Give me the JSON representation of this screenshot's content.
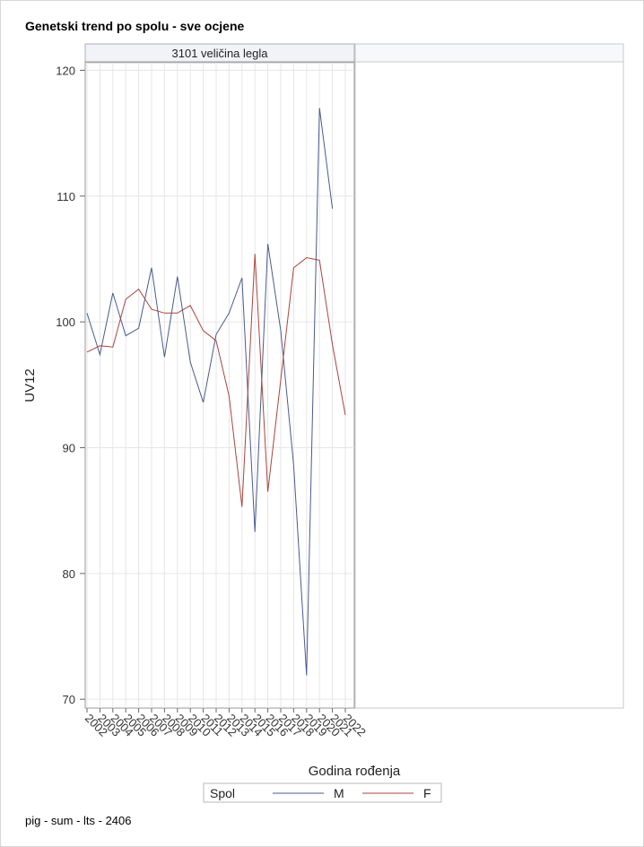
{
  "title": "Genetski trend po spolu - sve ocjene",
  "footnote": "pig - sum - lts - 2406",
  "chart_data": {
    "type": "line",
    "panel_label": "3101 veličina legla",
    "xlabel": "Godina rođenja",
    "ylabel": "UV12",
    "ylim": [
      69.3,
      120.6
    ],
    "yticks": [
      70,
      80,
      90,
      100,
      110,
      120
    ],
    "grid": true,
    "categories": [
      "2002",
      "2003",
      "2004",
      "2005",
      "2006",
      "2007",
      "2008",
      "2009",
      "2010",
      "2011",
      "2012",
      "2013",
      "2014",
      "2015",
      "2016",
      "2017",
      "2018",
      "2019",
      "2020",
      "2021",
      "2022"
    ],
    "legend_title": "Spol",
    "series": [
      {
        "name": "M",
        "color": "#4a5a8f",
        "values": [
          100.7,
          97.4,
          102.3,
          98.9,
          99.5,
          104.3,
          97.2,
          103.6,
          96.8,
          93.6,
          99.0,
          100.7,
          103.5,
          83.3,
          106.2,
          99.3,
          88.6,
          71.9,
          117.0,
          109.0,
          null
        ]
      },
      {
        "name": "F",
        "color": "#a8453c",
        "values": [
          97.6,
          98.1,
          98.0,
          101.8,
          102.6,
          101.0,
          100.7,
          100.7,
          101.3,
          99.3,
          98.5,
          94.1,
          85.3,
          105.4,
          86.5,
          95.4,
          104.3,
          105.1,
          104.9,
          98.2,
          92.6
        ]
      }
    ]
  }
}
